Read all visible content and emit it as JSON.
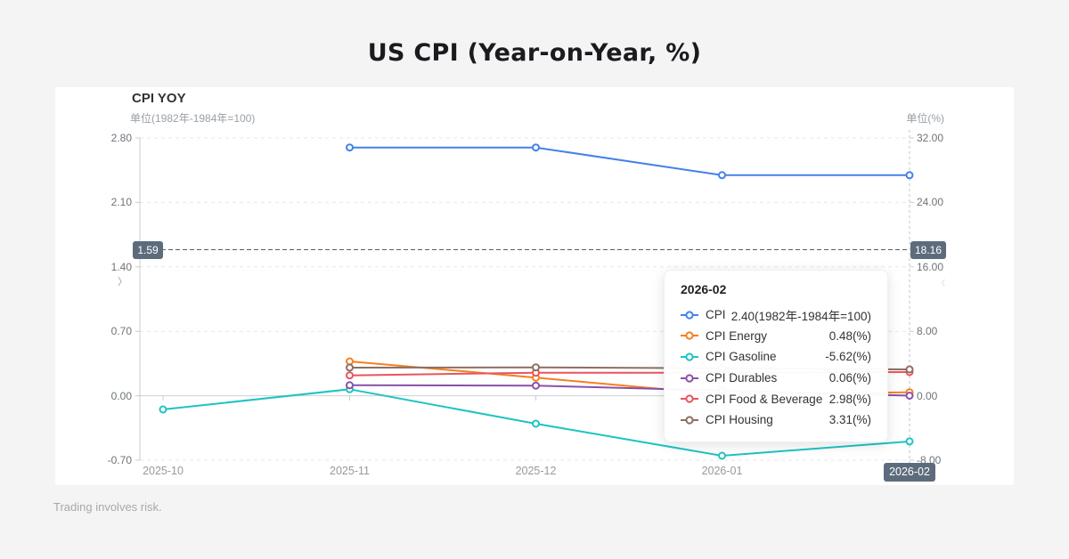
{
  "page": {
    "title": "US CPI (Year-on-Year, %)",
    "footer": "Trading involves risk."
  },
  "chart": {
    "title": "CPI YOY",
    "left_unit": "单位(1982年-1984年=100)",
    "right_unit": "单位(%)",
    "marker_left_badge": "1.59",
    "marker_right_badge": "18.16",
    "x_badge": "2026-02",
    "left_chevron": "〉",
    "right_chevron": "〈"
  },
  "tooltip": {
    "header": "2026-02",
    "rows": [
      {
        "label": "CPI",
        "value": "2.40(1982年-1984年=100)",
        "color": "#4381e8"
      },
      {
        "label": "CPI Energy",
        "value": "0.48(%)",
        "color": "#f5801f"
      },
      {
        "label": "CPI Gasoline",
        "value": "-5.62(%)",
        "color": "#1fc3c3"
      },
      {
        "label": "CPI Durables",
        "value": "0.06(%)",
        "color": "#8950a8"
      },
      {
        "label": "CPI Food & Beverage",
        "value": "2.98(%)",
        "color": "#ea545c"
      },
      {
        "label": "CPI Housing",
        "value": "3.31(%)",
        "color": "#8d6e63"
      }
    ]
  },
  "chart_data": {
    "type": "line",
    "title": "CPI YOY",
    "x": [
      "2025-10",
      "2025-11",
      "2025-12",
      "2026-01",
      "2026-02"
    ],
    "x_tick_labels": [
      "2025-10",
      "2025-11",
      "2025-12",
      "2026-01"
    ],
    "series": [
      {
        "name": "CPI",
        "axis": "left",
        "color": "#4381e8",
        "values": [
          null,
          2.7,
          2.7,
          2.4,
          2.4
        ]
      },
      {
        "name": "CPI Energy",
        "axis": "right",
        "color": "#f5801f",
        "values": [
          null,
          4.31,
          2.3,
          0.2,
          0.48
        ]
      },
      {
        "name": "CPI Gasoline",
        "axis": "right",
        "color": "#1fc3c3",
        "values": [
          -1.66,
          0.85,
          -3.43,
          -7.4,
          -5.62
        ]
      },
      {
        "name": "CPI Durables",
        "axis": "right",
        "color": "#8950a8",
        "values": [
          null,
          1.35,
          1.3,
          0.7,
          0.06
        ]
      },
      {
        "name": "CPI Food & Beverage",
        "axis": "right",
        "color": "#ea545c",
        "values": [
          null,
          2.57,
          2.91,
          2.9,
          2.98
        ]
      },
      {
        "name": "CPI Housing",
        "axis": "right",
        "color": "#8d6e63",
        "values": [
          null,
          3.54,
          3.57,
          3.45,
          3.31
        ]
      }
    ],
    "left_axis": {
      "label": "单位(1982年-1984年=100)",
      "tick_labels": [
        "2.80",
        "2.10",
        "1.40",
        "0.70",
        "0.00",
        "-0.70"
      ],
      "range": [
        -0.7,
        2.8
      ]
    },
    "right_axis": {
      "label": "单位(%)",
      "tick_labels": [
        "32.00",
        "24.00",
        "16.00",
        "8.00",
        "0.00",
        "-8.00"
      ],
      "range": [
        -8,
        32
      ]
    },
    "marker_line": {
      "left_value": 1.59,
      "right_value": 18.16
    },
    "grid": true,
    "legend_position": "none"
  }
}
